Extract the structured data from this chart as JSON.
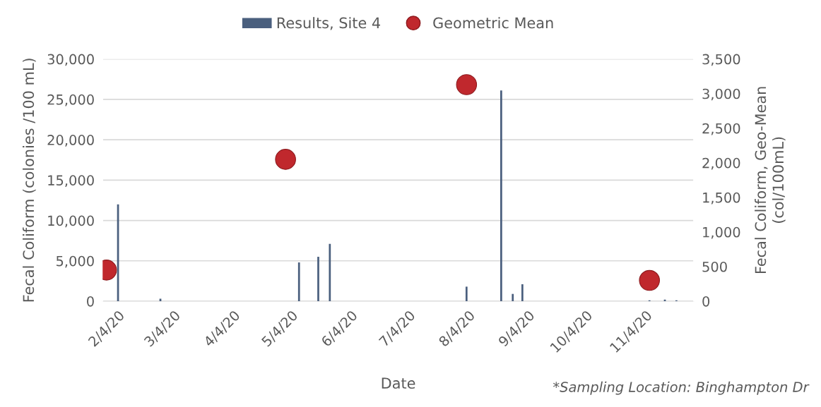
{
  "chart_data": {
    "type": "bar",
    "xlabel": "Date",
    "ylabel": "Fecal Coliform (colonies /100 mL)",
    "y2label": "Fecal Coliform, Geo-Mean\n(col/100mL)",
    "xlim": [
      "2020-01-27",
      "2020-11-29"
    ],
    "xticks": [
      {
        "value": "2020-02-04",
        "label": "2/4/20"
      },
      {
        "value": "2020-03-04",
        "label": "3/4/20"
      },
      {
        "value": "2020-04-04",
        "label": "4/4/20"
      },
      {
        "value": "2020-05-04",
        "label": "5/4/20"
      },
      {
        "value": "2020-06-04",
        "label": "6/4/20"
      },
      {
        "value": "2020-07-04",
        "label": "7/4/20"
      },
      {
        "value": "2020-08-04",
        "label": "8/4/20"
      },
      {
        "value": "2020-09-04",
        "label": "9/4/20"
      },
      {
        "value": "2020-10-04",
        "label": "10/4/20"
      },
      {
        "value": "2020-11-04",
        "label": "11/4/20"
      }
    ],
    "ylim": [
      0,
      30000
    ],
    "yticks": [
      {
        "value": 0,
        "label": "0"
      },
      {
        "value": 5000,
        "label": "5,000"
      },
      {
        "value": 10000,
        "label": "10,000"
      },
      {
        "value": 15000,
        "label": "15,000"
      },
      {
        "value": 20000,
        "label": "20,000"
      },
      {
        "value": 25000,
        "label": "25,000"
      },
      {
        "value": 30000,
        "label": "30,000"
      }
    ],
    "y2lim": [
      0,
      3500
    ],
    "y2ticks": [
      {
        "value": 0,
        "label": "0"
      },
      {
        "value": 500,
        "label": "500"
      },
      {
        "value": 1000,
        "label": "1,000"
      },
      {
        "value": 1500,
        "label": "1,500"
      },
      {
        "value": 2000,
        "label": "2,000"
      },
      {
        "value": 2500,
        "label": "2,500"
      },
      {
        "value": 3000,
        "label": "3,000"
      },
      {
        "value": 3500,
        "label": "3,500"
      }
    ],
    "grid": "y",
    "legend": "top",
    "marker": "circle",
    "series": [
      {
        "name": "Results, Site 4",
        "color": "#4a5f7e",
        "x": [
          "2020-02-04",
          "2020-02-26",
          "2020-05-08",
          "2020-05-18",
          "2020-05-24",
          "2020-08-03",
          "2020-08-21",
          "2020-08-27",
          "2020-09-01",
          "2020-11-06",
          "2020-11-14",
          "2020-11-20"
        ],
        "values": [
          12000,
          300,
          4800,
          5500,
          7100,
          1800,
          26100,
          900,
          2100,
          100,
          200,
          100
        ]
      },
      {
        "name": "Geometric Mean",
        "type": "scatter",
        "axis": "y2",
        "color": "#c0282d",
        "x": [
          "2020-01-29",
          "2020-05-01",
          "2020-08-03",
          "2020-11-06"
        ],
        "values": [
          450,
          2050,
          3130,
          300
        ]
      }
    ],
    "annotations": [
      "*Sampling Location: Binghampton Dr"
    ]
  }
}
